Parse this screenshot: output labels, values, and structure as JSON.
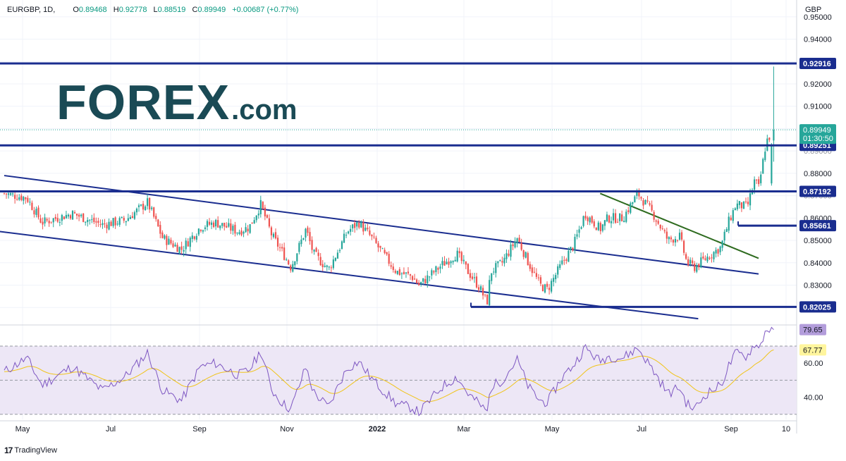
{
  "header": {
    "symbol": "EURGBP, 1D,",
    "o_label": "O",
    "o_value": "0.89468",
    "h_label": "H",
    "h_value": "0.92778",
    "l_label": "L",
    "l_value": "0.88519",
    "c_label": "C",
    "c_value": "0.89949",
    "change": "+0.00687 (+0.77%)"
  },
  "branding": {
    "logo_text": "FOREX",
    "logo_suffix": ".com",
    "footer": "TradingView"
  },
  "colors": {
    "up": "#26a69a",
    "down": "#ef5350",
    "level_line": "#1a2d8f",
    "trend_green": "#2e6b1f",
    "rsi_line": "#7e57c2",
    "rsi_ma": "#f0c419",
    "rsi_band": "#ede7f6",
    "logo": "#1a4a55"
  },
  "chart_data": [
    {
      "type": "candlestick",
      "title": "EURGBP, 1D",
      "currency": "GBP",
      "ylim": [
        0.8125,
        0.955
      ],
      "y_ticks": [
        "0.95000",
        "0.94000",
        "0.93000",
        "0.92000",
        "0.91000",
        "0.90000",
        "0.89000",
        "0.88000",
        "0.87000",
        "0.86000",
        "0.85000",
        "0.84000",
        "0.83000",
        "0.82000"
      ],
      "x_ticks": [
        "May",
        "Jul",
        "Sep",
        "Nov",
        "2022",
        "Mar",
        "May",
        "Jul",
        "Sep",
        "10"
      ],
      "current_price": "0.89949",
      "countdown": "01:30:50",
      "levels": [
        {
          "value": 0.92916,
          "label": "0.92916"
        },
        {
          "value": 0.89251,
          "label": "0.89251"
        },
        {
          "value": 0.87192,
          "label": "0.87192"
        },
        {
          "value": 0.85661,
          "label": "0.85661"
        },
        {
          "value": 0.82025,
          "label": "0.82025"
        }
      ],
      "trendlines": [
        {
          "name": "channel-upper",
          "from": [
            0,
            0.879
          ],
          "to": [
            1.0,
            0.835
          ]
        },
        {
          "name": "channel-lower",
          "from": [
            -0.03,
            0.855
          ],
          "to": [
            0.92,
            0.815
          ]
        },
        {
          "name": "green-downtrend",
          "from": [
            0.79,
            0.871
          ],
          "to": [
            1.0,
            0.842
          ]
        }
      ],
      "path": [
        [
          0,
          0.871
        ],
        [
          0.03,
          0.869
        ],
        [
          0.05,
          0.858
        ],
        [
          0.09,
          0.862
        ],
        [
          0.13,
          0.857
        ],
        [
          0.16,
          0.859
        ],
        [
          0.19,
          0.867
        ],
        [
          0.21,
          0.851
        ],
        [
          0.235,
          0.846
        ],
        [
          0.26,
          0.856
        ],
        [
          0.28,
          0.858
        ],
        [
          0.31,
          0.854
        ],
        [
          0.325,
          0.856
        ],
        [
          0.34,
          0.866
        ],
        [
          0.355,
          0.852
        ],
        [
          0.37,
          0.844
        ],
        [
          0.38,
          0.838
        ],
        [
          0.4,
          0.855
        ],
        [
          0.41,
          0.844
        ],
        [
          0.43,
          0.837
        ],
        [
          0.445,
          0.847
        ],
        [
          0.455,
          0.854
        ],
        [
          0.47,
          0.858
        ],
        [
          0.485,
          0.852
        ],
        [
          0.5,
          0.845
        ],
        [
          0.52,
          0.836
        ],
        [
          0.54,
          0.834
        ],
        [
          0.55,
          0.83
        ],
        [
          0.58,
          0.839
        ],
        [
          0.6,
          0.844
        ],
        [
          0.615,
          0.836
        ],
        [
          0.63,
          0.829
        ],
        [
          0.64,
          0.822
        ],
        [
          0.645,
          0.836
        ],
        [
          0.66,
          0.84
        ],
        [
          0.68,
          0.851
        ],
        [
          0.695,
          0.84
        ],
        [
          0.71,
          0.83
        ],
        [
          0.72,
          0.828
        ],
        [
          0.74,
          0.84
        ],
        [
          0.755,
          0.848
        ],
        [
          0.77,
          0.862
        ],
        [
          0.79,
          0.855
        ],
        [
          0.8,
          0.86
        ],
        [
          0.82,
          0.86
        ],
        [
          0.84,
          0.871
        ],
        [
          0.86,
          0.862
        ],
        [
          0.88,
          0.85
        ],
        [
          0.895,
          0.852
        ],
        [
          0.905,
          0.84
        ],
        [
          0.915,
          0.838
        ],
        [
          0.93,
          0.842
        ],
        [
          0.95,
          0.847
        ],
        [
          0.96,
          0.858
        ],
        [
          0.97,
          0.866
        ],
        [
          0.985,
          0.865
        ],
        [
          0.995,
          0.877
        ],
        [
          1.0,
          0.873
        ],
        [
          1.01,
          0.894
        ],
        [
          1.02,
          0.8995
        ]
      ],
      "rsi": {
        "overbought": 70,
        "oversold": 30,
        "midline": 50,
        "ylim": [
          27,
          82
        ],
        "y_ticks": [
          "60.00",
          "40.00"
        ],
        "rsi_value": "79.65",
        "ma_value": "67.77",
        "path": [
          [
            0,
            55
          ],
          [
            0.03,
            63
          ],
          [
            0.05,
            47
          ],
          [
            0.09,
            58
          ],
          [
            0.13,
            44
          ],
          [
            0.16,
            52
          ],
          [
            0.19,
            66
          ],
          [
            0.21,
            44
          ],
          [
            0.235,
            38
          ],
          [
            0.26,
            58
          ],
          [
            0.28,
            60
          ],
          [
            0.31,
            53
          ],
          [
            0.325,
            56
          ],
          [
            0.34,
            67
          ],
          [
            0.355,
            44
          ],
          [
            0.37,
            36
          ],
          [
            0.38,
            33
          ],
          [
            0.4,
            58
          ],
          [
            0.41,
            43
          ],
          [
            0.43,
            34
          ],
          [
            0.445,
            49
          ],
          [
            0.455,
            57
          ],
          [
            0.47,
            61
          ],
          [
            0.485,
            52
          ],
          [
            0.5,
            45
          ],
          [
            0.52,
            36
          ],
          [
            0.54,
            34
          ],
          [
            0.55,
            31
          ],
          [
            0.58,
            46
          ],
          [
            0.6,
            52
          ],
          [
            0.615,
            42
          ],
          [
            0.63,
            36
          ],
          [
            0.64,
            31
          ],
          [
            0.645,
            46
          ],
          [
            0.66,
            50
          ],
          [
            0.68,
            62
          ],
          [
            0.695,
            46
          ],
          [
            0.71,
            38
          ],
          [
            0.72,
            37
          ],
          [
            0.74,
            52
          ],
          [
            0.755,
            59
          ],
          [
            0.77,
            69
          ],
          [
            0.79,
            61
          ],
          [
            0.8,
            64
          ],
          [
            0.82,
            63
          ],
          [
            0.84,
            69
          ],
          [
            0.86,
            56
          ],
          [
            0.88,
            42
          ],
          [
            0.895,
            46
          ],
          [
            0.905,
            36
          ],
          [
            0.915,
            33
          ],
          [
            0.93,
            42
          ],
          [
            0.95,
            47
          ],
          [
            0.96,
            58
          ],
          [
            0.97,
            66
          ],
          [
            0.985,
            64
          ],
          [
            0.995,
            72
          ],
          [
            1.0,
            68
          ],
          [
            1.01,
            80
          ],
          [
            1.02,
            79.65
          ]
        ]
      }
    }
  ]
}
